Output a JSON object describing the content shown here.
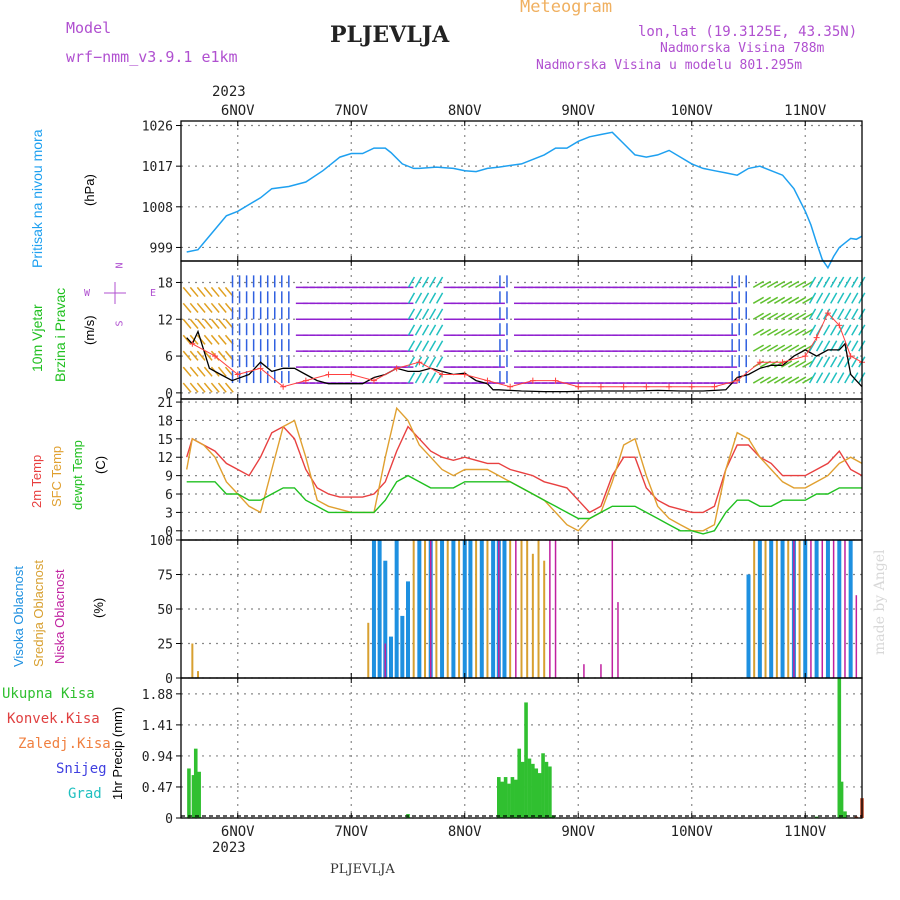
{
  "header": {
    "model_label": "Model",
    "model_name": "wrf−nmm_v3.9.1  e1km",
    "station": "PLJEVLJA",
    "meteogram": "Meteogram",
    "lonlat": "lon,lat (19.3125E, 43.35N)",
    "altitude": "Nadmorska Visina 788m",
    "model_altitude": "Nadmorska Visina u modelu 801.295m",
    "footer_station": "PLJEVLJA",
    "credit": "made by Angel"
  },
  "colors": {
    "pressure": "#1ea0f0",
    "temp": "#e84040",
    "sfc": "#e0a030",
    "dewpt": "#20c020",
    "cloud_high": "#1e90e0",
    "cloud_mid": "#d8a030",
    "cloud_low": "#c020a0",
    "precip": "#30c030",
    "conv": "#e04040",
    "wind_speed": "#000000",
    "gust": "#ff4040"
  },
  "chart_data": [
    {
      "panel": "pressure",
      "type": "line",
      "ylabel_colored": "Pritisak na nivou mora",
      "ylabel_unit": "(hPa)",
      "yticks": [
        "999",
        "1008",
        "1017",
        "1026"
      ],
      "ylim": [
        996,
        1027
      ],
      "year_top": "2023",
      "days": [
        "6NOV",
        "7NOV",
        "8NOV",
        "9NOV",
        "10NOV",
        "11NOV"
      ],
      "x": [
        5.55,
        5.65,
        5.7,
        5.8,
        5.9,
        6.0,
        6.1,
        6.2,
        6.3,
        6.45,
        6.6,
        6.75,
        6.9,
        7.0,
        7.1,
        7.2,
        7.3,
        7.35,
        7.45,
        7.55,
        7.6,
        7.75,
        7.9,
        8.0,
        8.1,
        8.2,
        8.3,
        8.5,
        8.7,
        8.8,
        8.9,
        9.0,
        9.1,
        9.2,
        9.3,
        9.4,
        9.5,
        9.6,
        9.7,
        9.8,
        9.9,
        10.0,
        10.1,
        10.2,
        10.3,
        10.4,
        10.5,
        10.6,
        10.7,
        10.8,
        10.9,
        11.0,
        11.05,
        11.1,
        11.15,
        11.2,
        11.25,
        11.3,
        11.35,
        11.4,
        11.45,
        11.5
      ],
      "values": [
        998,
        998.5,
        1000,
        1003,
        1006,
        1007,
        1008.5,
        1010,
        1012,
        1012.5,
        1013.5,
        1016,
        1019,
        1019.8,
        1019.8,
        1021,
        1021,
        1020,
        1017.5,
        1016.5,
        1016.5,
        1016.8,
        1016.5,
        1016,
        1015.8,
        1016.5,
        1016.8,
        1017.5,
        1019.5,
        1021,
        1021,
        1022.5,
        1023.5,
        1024,
        1024.5,
        1022,
        1019.5,
        1019,
        1019.5,
        1020.5,
        1019,
        1017.5,
        1016.5,
        1016,
        1015.5,
        1015,
        1016.5,
        1017,
        1016,
        1015,
        1012,
        1007,
        1004,
        1000,
        996.3,
        994.5,
        997,
        999,
        1000,
        1001,
        1000.8,
        1001.5
      ]
    },
    {
      "panel": "wind",
      "type": "line",
      "ylabel_colored1": "10m Vjetar",
      "ylabel_colored2": "Brzina i Pravac",
      "ylabel_unit": "(m/s)",
      "compass": [
        "N",
        "E",
        "S",
        "W"
      ],
      "yticks": [
        "0",
        "6",
        "12",
        "18"
      ],
      "ylim": [
        -1,
        21.5
      ],
      "speed_x": [
        5.55,
        5.6,
        5.65,
        5.75,
        5.85,
        5.95,
        6.1,
        6.2,
        6.3,
        6.4,
        6.5,
        6.6,
        6.7,
        6.8,
        6.9,
        7.0,
        7.1,
        7.2,
        7.3,
        7.4,
        7.5,
        7.6,
        7.7,
        7.8,
        7.9,
        8.0,
        8.1,
        8.2,
        8.25,
        8.3,
        8.5,
        8.7,
        8.9,
        9.1,
        9.3,
        9.5,
        9.7,
        9.9,
        10.1,
        10.3,
        10.35,
        10.4,
        10.5,
        10.6,
        10.7,
        10.8,
        10.9,
        11.0,
        11.1,
        11.2,
        11.3,
        11.35,
        11.4,
        11.5
      ],
      "speed": [
        9,
        8,
        10,
        4,
        3,
        2,
        3,
        5,
        3.5,
        4,
        4,
        3,
        2,
        1.5,
        1.5,
        1.5,
        1.5,
        2.5,
        3,
        4,
        3.5,
        3.5,
        4,
        3.5,
        3,
        3.2,
        2,
        1.5,
        0.5,
        0.5,
        0.3,
        0.2,
        0.2,
        0.3,
        0.3,
        0.3,
        0.4,
        0.3,
        0.3,
        0.5,
        1.5,
        2.5,
        3,
        4,
        4.5,
        4.5,
        6,
        7,
        6,
        7,
        7,
        8,
        3,
        1
      ],
      "gust_x": [
        5.6,
        5.8,
        6.0,
        6.2,
        6.4,
        6.6,
        6.8,
        7.0,
        7.2,
        7.4,
        7.6,
        7.8,
        8.0,
        8.2,
        8.4,
        8.6,
        8.8,
        9.0,
        9.2,
        9.4,
        9.6,
        9.8,
        10.0,
        10.2,
        10.4,
        10.6,
        10.8,
        11.0,
        11.1,
        11.2,
        11.3,
        11.4,
        11.5
      ],
      "gust": [
        8,
        6,
        3,
        4,
        1,
        2,
        3,
        3,
        2,
        4,
        5,
        3,
        3,
        2,
        1,
        2,
        2,
        1,
        1,
        1,
        1,
        1,
        1,
        1,
        2,
        5,
        5,
        6,
        9,
        13,
        11,
        6,
        5
      ]
    },
    {
      "panel": "temperature",
      "type": "line",
      "ylabel_colored1": "2m Temp",
      "ylabel_colored2": "SFC Temp",
      "ylabel_colored3": "dewpt Temp",
      "ylabel_unit": "(C)",
      "yticks": [
        "0",
        "3",
        "6",
        "9",
        "12",
        "15",
        "18",
        "21"
      ],
      "ylim": [
        -1.5,
        21.5
      ],
      "x": [
        5.55,
        5.6,
        5.7,
        5.8,
        5.9,
        6.0,
        6.1,
        6.2,
        6.3,
        6.4,
        6.5,
        6.6,
        6.7,
        6.8,
        6.9,
        7.0,
        7.1,
        7.2,
        7.3,
        7.4,
        7.5,
        7.6,
        7.7,
        7.8,
        7.9,
        8.0,
        8.1,
        8.2,
        8.3,
        8.4,
        8.5,
        8.6,
        8.7,
        8.8,
        8.9,
        9.0,
        9.1,
        9.2,
        9.3,
        9.4,
        9.5,
        9.6,
        9.7,
        9.8,
        9.9,
        10.0,
        10.1,
        10.2,
        10.3,
        10.4,
        10.5,
        10.6,
        10.7,
        10.8,
        10.9,
        11.0,
        11.1,
        11.2,
        11.3,
        11.4,
        11.5
      ],
      "series": [
        {
          "name": "2m Temp",
          "values": [
            12,
            15,
            14,
            13,
            11,
            10,
            9,
            12,
            16,
            17,
            15,
            10,
            7,
            6,
            5.5,
            5.5,
            5.5,
            6,
            8,
            13,
            17,
            15,
            13,
            12,
            11.5,
            12,
            11.5,
            11,
            11,
            10,
            9.5,
            9,
            8,
            7.5,
            7,
            5,
            3,
            4,
            9,
            12,
            12,
            7,
            5,
            4,
            3.5,
            3,
            3,
            4,
            10,
            14,
            14,
            12,
            11,
            9,
            9,
            9,
            10,
            11,
            13,
            10,
            9
          ]
        },
        {
          "name": "SFC Temp",
          "values": [
            10,
            15,
            14,
            12,
            8,
            6,
            4,
            3,
            10,
            17,
            18,
            12,
            5,
            4,
            3.5,
            3,
            3,
            3,
            12,
            20,
            18,
            14,
            12,
            10,
            9,
            10,
            10,
            10,
            9,
            8,
            7,
            6,
            5,
            3,
            1,
            0,
            2,
            3,
            8,
            14,
            15,
            9,
            4,
            2,
            1,
            0,
            0,
            1,
            10,
            16,
            15,
            12,
            10,
            8,
            7,
            7,
            8,
            9,
            11,
            12,
            11
          ]
        },
        {
          "name": "dewpt Temp",
          "values": [
            8,
            8,
            8,
            8,
            6,
            6,
            5,
            5,
            6,
            7,
            7,
            5,
            4,
            3,
            3,
            3,
            3,
            3,
            5,
            8,
            9,
            8,
            7,
            7,
            7,
            8,
            8,
            8,
            8,
            8,
            7,
            6,
            5,
            4,
            3,
            2,
            2,
            3,
            4,
            4,
            4,
            3,
            2,
            1,
            0,
            0,
            -0.5,
            0,
            3,
            5,
            5,
            4,
            4,
            5,
            5,
            5,
            6,
            6,
            7,
            7,
            7
          ]
        }
      ]
    },
    {
      "panel": "cloud",
      "type": "bar",
      "ylabel_colored1": "Visoka Oblacnost",
      "ylabel_colored2": "Srednja Oblacnost",
      "ylabel_colored3": "Niska Oblacnost",
      "ylabel_unit": "(%)",
      "yticks": [
        "0",
        "25",
        "50",
        "75",
        "100"
      ],
      "ylim": [
        0,
        100
      ],
      "high": [
        [
          5.55,
          0
        ],
        [
          7.2,
          100
        ],
        [
          7.25,
          100
        ],
        [
          7.3,
          85
        ],
        [
          7.35,
          30
        ],
        [
          7.4,
          100
        ],
        [
          7.45,
          45
        ],
        [
          7.5,
          70
        ],
        [
          7.6,
          100
        ],
        [
          7.7,
          100
        ],
        [
          7.8,
          100
        ],
        [
          7.9,
          100
        ],
        [
          8.0,
          100
        ],
        [
          8.05,
          100
        ],
        [
          8.15,
          100
        ],
        [
          8.25,
          100
        ],
        [
          8.3,
          100
        ],
        [
          8.35,
          100
        ],
        [
          10.5,
          75
        ],
        [
          10.6,
          100
        ],
        [
          10.7,
          100
        ],
        [
          10.8,
          100
        ],
        [
          10.9,
          100
        ],
        [
          11.0,
          100
        ],
        [
          11.1,
          100
        ],
        [
          11.2,
          100
        ],
        [
          11.3,
          100
        ],
        [
          11.4,
          100
        ]
      ],
      "mid": [
        [
          5.6,
          25
        ],
        [
          5.65,
          5
        ],
        [
          7.15,
          40
        ],
        [
          7.55,
          100
        ],
        [
          7.65,
          100
        ],
        [
          7.75,
          100
        ],
        [
          7.85,
          100
        ],
        [
          7.95,
          100
        ],
        [
          8.1,
          100
        ],
        [
          8.2,
          100
        ],
        [
          8.4,
          100
        ],
        [
          8.5,
          100
        ],
        [
          8.55,
          100
        ],
        [
          8.6,
          90
        ],
        [
          8.65,
          100
        ],
        [
          8.7,
          85
        ],
        [
          10.55,
          100
        ],
        [
          10.65,
          100
        ],
        [
          10.75,
          100
        ],
        [
          10.85,
          100
        ],
        [
          10.95,
          100
        ]
      ],
      "low": [
        [
          7.3,
          25
        ],
        [
          7.7,
          100
        ],
        [
          8.3,
          100
        ],
        [
          8.45,
          100
        ],
        [
          8.75,
          100
        ],
        [
          8.8,
          100
        ],
        [
          9.05,
          10
        ],
        [
          9.2,
          10
        ],
        [
          9.3,
          100
        ],
        [
          9.35,
          55
        ],
        [
          10.9,
          100
        ],
        [
          11.05,
          100
        ],
        [
          11.15,
          100
        ],
        [
          11.25,
          100
        ],
        [
          11.35,
          100
        ],
        [
          11.45,
          60
        ]
      ]
    },
    {
      "panel": "precip",
      "type": "bar",
      "legend": [
        "Ukupna Kisa",
        "Konvek.Kisa",
        "Zaledj.Kisa",
        "Snijeg",
        "Grad"
      ],
      "ylabel": "1hr Precip (mm)",
      "yticks": [
        "0",
        "0.47",
        "0.94",
        "1.41",
        "1.88"
      ],
      "ylim": [
        0,
        2.12
      ],
      "year_bottom": "2023",
      "days": [
        "6NOV",
        "7NOV",
        "8NOV",
        "9NOV",
        "10NOV",
        "11NOV"
      ],
      "x": [
        5.57,
        5.61,
        5.63,
        5.66,
        7.5,
        8.3,
        8.33,
        8.36,
        8.39,
        8.42,
        8.45,
        8.48,
        8.51,
        8.54,
        8.57,
        8.6,
        8.63,
        8.66,
        8.69,
        8.72,
        8.75,
        8.78,
        11.1,
        11.3,
        11.32,
        11.35,
        11.45,
        11.5
      ],
      "values": [
        0.75,
        0.65,
        1.05,
        0.7,
        0.06,
        0.62,
        0.55,
        0.62,
        0.52,
        0.62,
        0.58,
        1.05,
        0.85,
        1.75,
        0.9,
        0.82,
        0.75,
        0.68,
        0.98,
        0.85,
        0.78,
        0.04,
        0.02,
        2.12,
        0.55,
        0.1,
        0.02,
        0.3
      ]
    }
  ]
}
